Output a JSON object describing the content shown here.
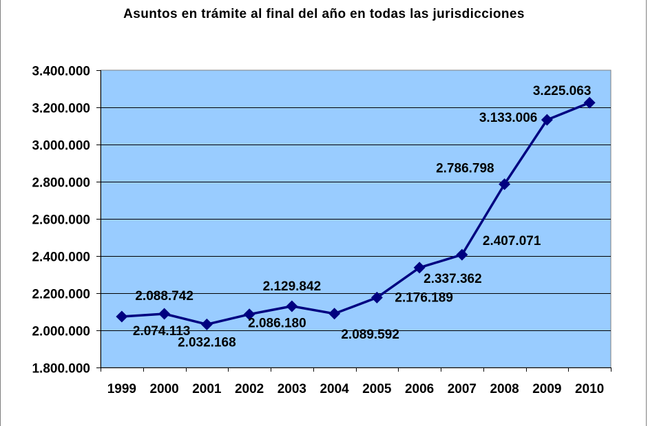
{
  "chart_data": {
    "type": "line",
    "title": "Asuntos en trámite al final del año en todas las jurisdicciones",
    "xlabel": "",
    "ylabel": "",
    "categories": [
      "1999",
      "2000",
      "2001",
      "2002",
      "2003",
      "2004",
      "2005",
      "2006",
      "2007",
      "2008",
      "2009",
      "2010"
    ],
    "series": [
      {
        "name": "Asuntos en trámite",
        "values": [
          2074113,
          2088742,
          2032168,
          2086180,
          2129842,
          2089592,
          2176189,
          2337362,
          2407071,
          2786798,
          3133006,
          3225063
        ],
        "labels": [
          "2.074.113",
          "2.088.742",
          "2.032.168",
          "2.086.180",
          "2.129.842",
          "2.089.592",
          "2.176.189",
          "2.337.362",
          "2.407.071",
          "2.786.798",
          "3.133.006",
          "3.225.063"
        ]
      }
    ],
    "ylim": [
      1800000,
      3400000
    ],
    "yticks": [
      1800000,
      2000000,
      2200000,
      2400000,
      2600000,
      2800000,
      3000000,
      3200000,
      3400000
    ],
    "ytick_labels": [
      "1.800.000",
      "2.000.000",
      "2.200.000",
      "2.400.000",
      "2.600.000",
      "2.800.000",
      "3.000.000",
      "3.200.000",
      "3.400.000"
    ],
    "grid": true,
    "colors": {
      "plot_background": "#99ccff",
      "line": "#000080",
      "grid": "#000000"
    }
  }
}
